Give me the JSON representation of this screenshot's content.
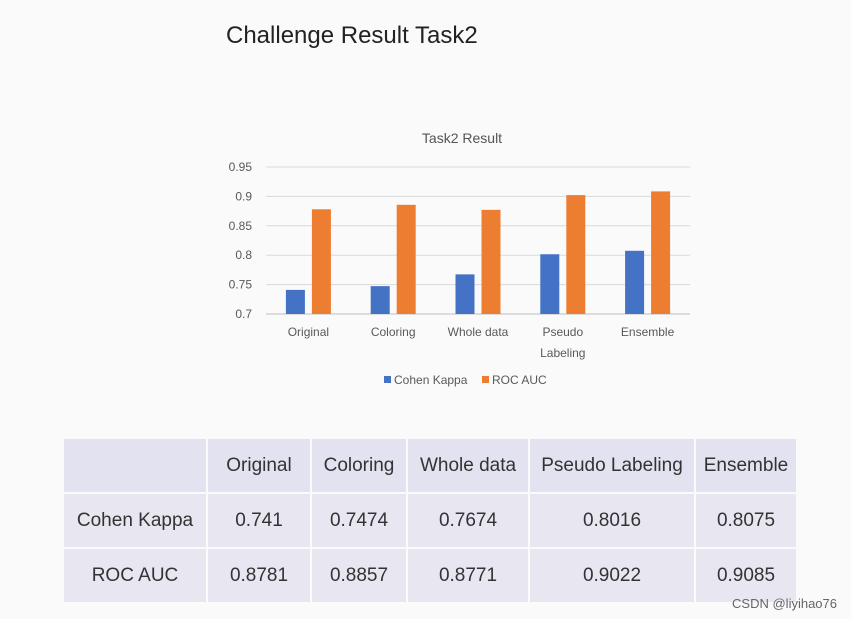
{
  "slide": {
    "title": "Challenge Result Task2"
  },
  "chart_data": {
    "type": "bar",
    "title": "Task2 Result",
    "categories": [
      "Original",
      "Coloring",
      "Whole data",
      "Pseudo Labeling",
      "Ensemble"
    ],
    "category_lines": [
      [
        "Original"
      ],
      [
        "Coloring"
      ],
      [
        "Whole data"
      ],
      [
        "Pseudo",
        "Labeling"
      ],
      [
        "Ensemble"
      ]
    ],
    "series": [
      {
        "name": "Cohen Kappa",
        "color": "#4472c4",
        "values": [
          0.741,
          0.7474,
          0.7674,
          0.8016,
          0.8075
        ]
      },
      {
        "name": "ROC AUC",
        "color": "#ed7d31",
        "values": [
          0.8781,
          0.8857,
          0.8771,
          0.9022,
          0.9085
        ]
      }
    ],
    "ylim": [
      0.7,
      0.95
    ],
    "yticks": [
      "0.7",
      "0.75",
      "0.8",
      "0.85",
      "0.9",
      "0.95"
    ],
    "grid": true,
    "legend": "bottom"
  },
  "table": {
    "columns": [
      "",
      "Original",
      "Coloring",
      "Whole data",
      "Pseudo Labeling",
      "Ensemble"
    ],
    "rows": [
      [
        "Cohen Kappa",
        "0.741",
        "0.7474",
        "0.7674",
        "0.8016",
        "0.8075"
      ],
      [
        "ROC AUC",
        "0.8781",
        "0.8857",
        "0.8771",
        "0.9022",
        "0.9085"
      ]
    ]
  },
  "watermark": "CSDN @liyihao76"
}
